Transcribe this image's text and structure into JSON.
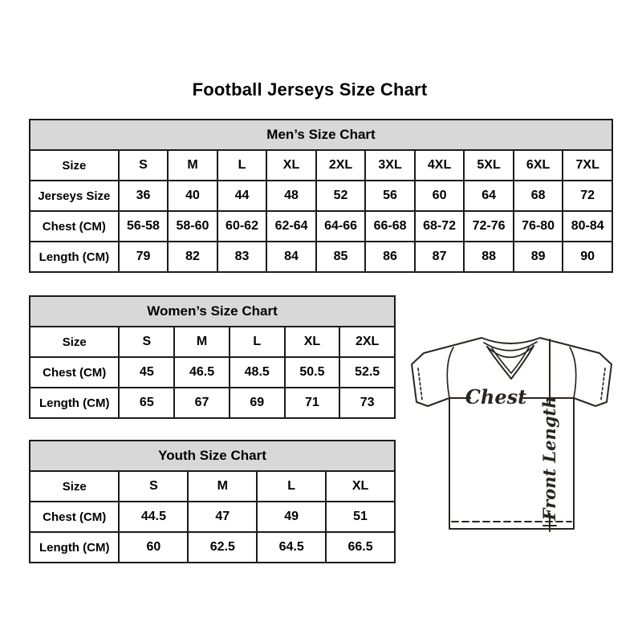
{
  "title": "Football Jerseys Size Chart",
  "colors": {
    "background": "#ffffff",
    "table_header_bg": "#d8d8d8",
    "table_border": "#1b1b1b",
    "text": "#000000",
    "diagram_stroke": "#2b2520"
  },
  "tables": [
    {
      "id": "men",
      "title": "Men’s Size Chart",
      "rows": [
        {
          "label": "Size",
          "values": [
            "S",
            "M",
            "L",
            "XL",
            "2XL",
            "3XL",
            "4XL",
            "5XL",
            "6XL",
            "7XL"
          ]
        },
        {
          "label": "Jerseys Size",
          "values": [
            "36",
            "40",
            "44",
            "48",
            "52",
            "56",
            "60",
            "64",
            "68",
            "72"
          ]
        },
        {
          "label": "Chest (CM)",
          "values": [
            "56-58",
            "58-60",
            "60-62",
            "62-64",
            "64-66",
            "66-68",
            "68-72",
            "72-76",
            "76-80",
            "80-84"
          ]
        },
        {
          "label": "Length (CM)",
          "values": [
            "79",
            "82",
            "83",
            "84",
            "85",
            "86",
            "87",
            "88",
            "89",
            "90"
          ]
        }
      ]
    },
    {
      "id": "women",
      "title": "Women’s Size Chart",
      "rows": [
        {
          "label": "Size",
          "values": [
            "S",
            "M",
            "L",
            "XL",
            "2XL"
          ]
        },
        {
          "label": "Chest (CM)",
          "values": [
            "45",
            "46.5",
            "48.5",
            "50.5",
            "52.5"
          ]
        },
        {
          "label": "Length (CM)",
          "values": [
            "65",
            "67",
            "69",
            "71",
            "73"
          ]
        }
      ]
    },
    {
      "id": "youth",
      "title": "Youth Size Chart",
      "rows": [
        {
          "label": "Size",
          "values": [
            "S",
            "M",
            "L",
            "XL"
          ]
        },
        {
          "label": "Chest (CM)",
          "values": [
            "44.5",
            "47",
            "49",
            "51"
          ]
        },
        {
          "label": "Length (CM)",
          "values": [
            "60",
            "62.5",
            "64.5",
            "66.5"
          ]
        }
      ]
    }
  ],
  "diagram": {
    "chest_label": "Chest",
    "front_length_label": "Front Length"
  }
}
